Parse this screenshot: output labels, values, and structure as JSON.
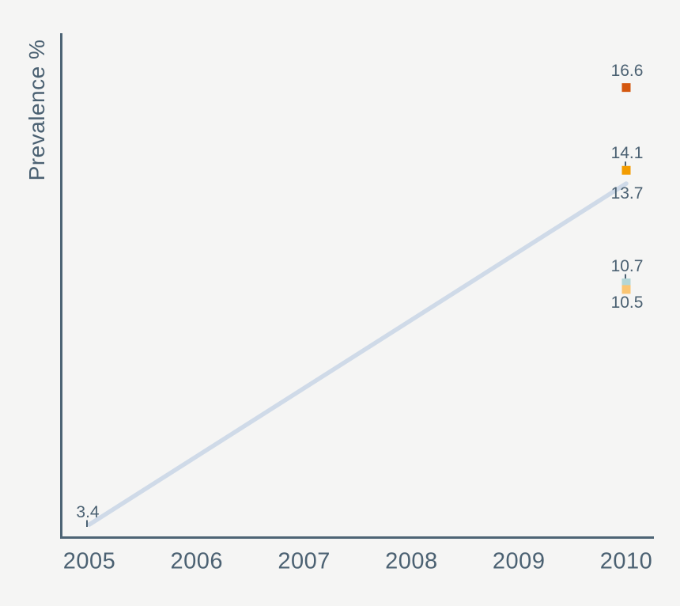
{
  "page": {
    "background": "#f5f5f4",
    "text_color": "#4b6172",
    "axis_color": "#4d6475"
  },
  "chart_data": {
    "type": "line",
    "title": "",
    "xlabel": "",
    "ylabel": "Prevalence %",
    "grid": false,
    "legend": false,
    "x_range": [
      2005,
      2010
    ],
    "x_ticks": [
      "2005",
      "2006",
      "2007",
      "2008",
      "2009",
      "2010"
    ],
    "y_axis_tick_labels_visible": false,
    "line_series": {
      "name": "trend",
      "color": "#cfdae8",
      "points": [
        {
          "x": 2005,
          "y": 3.4
        },
        {
          "x": 2010,
          "y": 13.7
        }
      ]
    },
    "line_point_labels": [
      {
        "x": 2005,
        "value": 3.4,
        "label": "3.4",
        "placement": "above-left",
        "leader_tick": true
      },
      {
        "x": 2010,
        "value": 13.7,
        "label": "13.7",
        "placement": "below",
        "leader_tick": false
      }
    ],
    "scatter_points": [
      {
        "x": 2010,
        "value": 16.6,
        "label": "16.6",
        "marker": "square",
        "color": "#d4570e",
        "placement": "above",
        "leader_tick": false
      },
      {
        "x": 2010,
        "value": 14.1,
        "label": "14.1",
        "marker": "square",
        "color": "#f39c00",
        "placement": "above",
        "leader_tick": true
      },
      {
        "x": 2010,
        "value": 10.7,
        "label": "10.7",
        "marker": "square",
        "color": "#b3d6d6",
        "placement": "above",
        "leader_tick": true
      },
      {
        "x": 2010,
        "value": 10.5,
        "label": "10.5",
        "marker": "square",
        "color": "#fac573",
        "placement": "below",
        "leader_tick": false
      }
    ]
  }
}
